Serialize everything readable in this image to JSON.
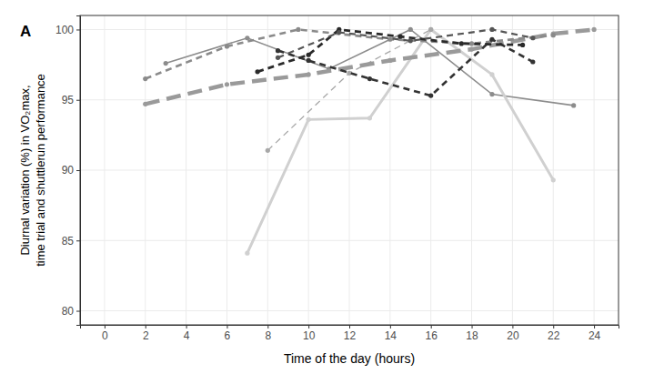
{
  "chart_data": {
    "type": "line",
    "title": "A",
    "x_label": "Time of the day (hours)",
    "y_label": [
      "Diurnal variation (%) in VO₂max,",
      "time trial and shuttlerun performance"
    ],
    "xlim": [
      -1.2,
      25.2
    ],
    "xticks": [
      0,
      2,
      4,
      6,
      8,
      10,
      12,
      14,
      16,
      18,
      20,
      22,
      24
    ],
    "ylim": [
      79,
      101
    ],
    "yticks": [
      80,
      85,
      90,
      95,
      100
    ],
    "grid": true,
    "marker": "circle",
    "series": [
      {
        "color": "#8c8c8c",
        "line_style": "solid",
        "x": [
          3,
          7,
          11,
          15,
          19,
          23
        ],
        "values": [
          97.6,
          99.4,
          97.2,
          100,
          95.4,
          94.6
        ]
      },
      {
        "color": "#d0d0d0",
        "line_style": "solid",
        "x": [
          7,
          10,
          13,
          16,
          19,
          22
        ],
        "values": [
          84.1,
          93.6,
          93.7,
          100,
          96.8,
          89.3
        ]
      },
      {
        "color": "#a8a8a8",
        "line_style": "dashed",
        "x": [
          8,
          12,
          16
        ],
        "values": [
          91.4,
          96.9,
          100
        ]
      },
      {
        "color": "#9a9a9a",
        "line_style": "longdash",
        "x": [
          2,
          6,
          10,
          14,
          18,
          22,
          24
        ],
        "values": [
          94.7,
          96.1,
          96.8,
          97.8,
          98.6,
          99.7,
          100
        ]
      },
      {
        "color": "#8a8a8a",
        "line_style": "dashed",
        "x": [
          2,
          6,
          9.5,
          14,
          18,
          22
        ],
        "values": [
          96.5,
          98.8,
          100,
          99.3,
          99.0,
          99.6
        ]
      },
      {
        "color": "#333333",
        "line_style": "dashed",
        "x": [
          8.5,
          10,
          13,
          16,
          19,
          21
        ],
        "values": [
          98.5,
          97.8,
          96.5,
          95.3,
          99.3,
          97.7
        ]
      },
      {
        "color": "#2a2a2a",
        "line_style": "dashed",
        "x": [
          7.5,
          10,
          11.5,
          14.5,
          17.5,
          20.5
        ],
        "values": [
          97.0,
          98.2,
          100,
          99.5,
          99.0,
          98.9
        ]
      },
      {
        "color": "#555555",
        "line_style": "dashed",
        "x": [
          8.5,
          11.5,
          15,
          19,
          21
        ],
        "values": [
          98.0,
          99.8,
          99.2,
          100,
          99.4
        ]
      }
    ]
  }
}
